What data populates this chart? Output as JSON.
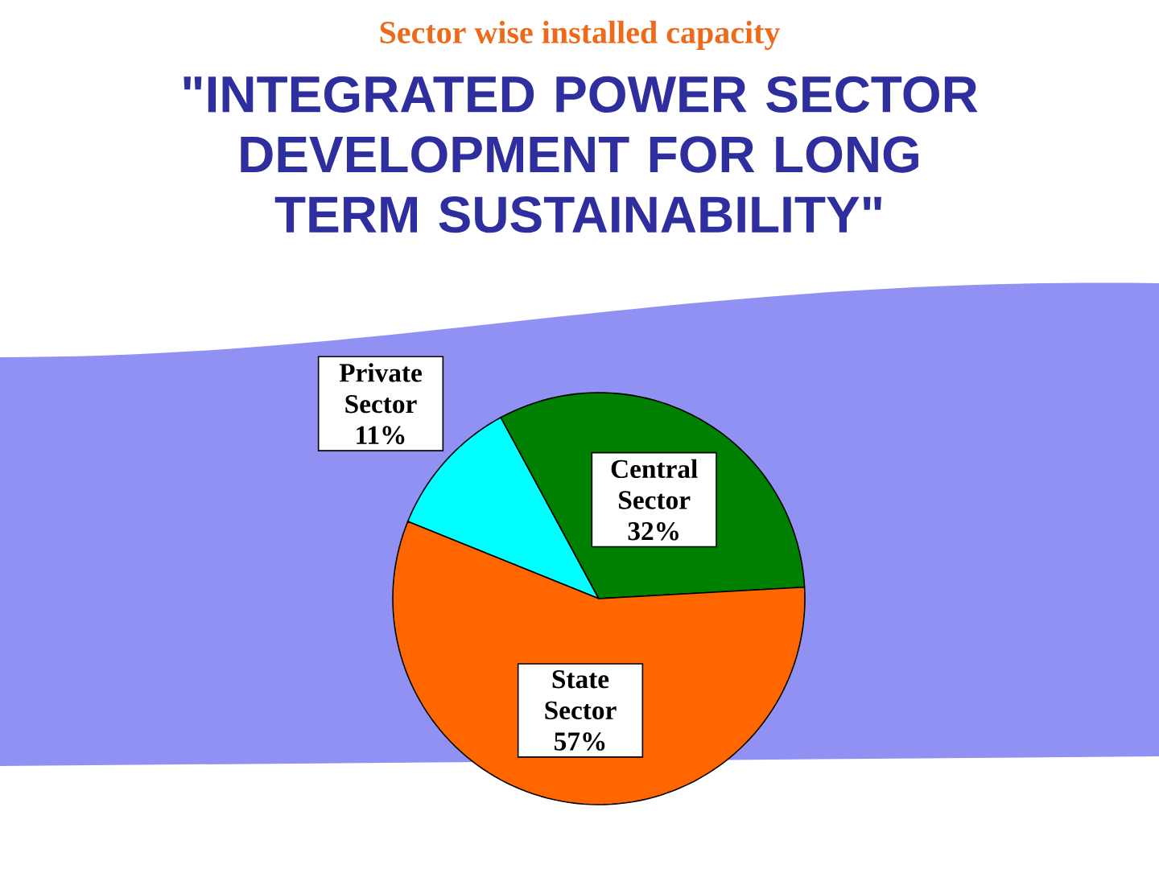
{
  "chart_data": {
    "type": "pie",
    "title": "Sector wise installed capacity",
    "categories": [
      "Private Sector",
      "Central Sector",
      "State Sector"
    ],
    "values": [
      11,
      32,
      57
    ],
    "colors": [
      "#00ffff",
      "#008000",
      "#ff6600"
    ],
    "value_labels": [
      "11%",
      "32%",
      "57%"
    ],
    "annotations": [
      "\"INTEGRATED POWER SECTOR DEVELOPMENT FOR LONG TERM SUSTAINABILITY\""
    ]
  }
}
